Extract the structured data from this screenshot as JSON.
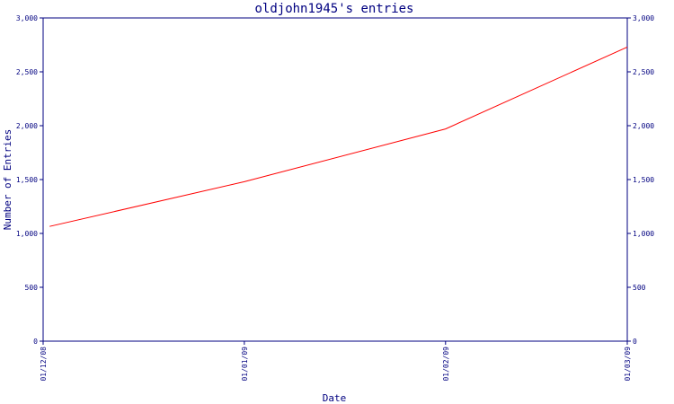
{
  "chart_data": {
    "type": "line",
    "title": "oldjohn1945's entries",
    "xlabel": "Date",
    "ylabel": "Number of Entries",
    "x_ticks": [
      "01/12/08",
      "01/01/09",
      "01/02/09",
      "01/03/09"
    ],
    "y_ticks": [
      "0",
      "500",
      "1,000",
      "1,500",
      "2,000",
      "2,500",
      "3,000"
    ],
    "ylim": [
      0,
      3000
    ],
    "xlim": [
      "2008-12-01",
      "2009-03-01"
    ],
    "grid": false,
    "series": [
      {
        "color": "#ff0000",
        "points": [
          {
            "x": "2008-12-02",
            "y": 1065
          },
          {
            "x": "2009-01-01",
            "y": 1480
          },
          {
            "x": "2009-02-01",
            "y": 1970
          },
          {
            "x": "2009-03-01",
            "y": 2730
          }
        ]
      }
    ]
  }
}
